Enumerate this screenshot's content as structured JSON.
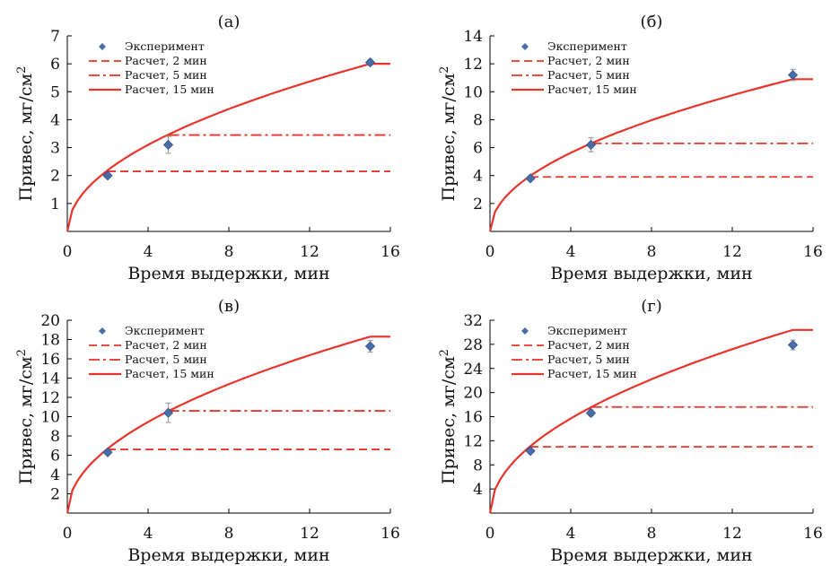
{
  "colors": {
    "calc": "#e8342a",
    "exp": "#4a6ea8",
    "err": "#a0a0a0",
    "axis": "#000000"
  },
  "chart_data": [
    {
      "type": "line",
      "panel_label": "(а)",
      "xlabel": "Время выдержки, мин",
      "ylabel": "Привес, мг/см",
      "ylabel_sup": "2",
      "xlim": [
        0,
        16
      ],
      "ylim": [
        0,
        7
      ],
      "xticks": [
        "0",
        "4",
        "8",
        "12",
        "16"
      ],
      "yticks": [
        "1",
        "2",
        "3",
        "4",
        "5",
        "6",
        "7"
      ],
      "experiment": {
        "name": "Эксперимент",
        "x": [
          2,
          5,
          15
        ],
        "y": [
          2.0,
          3.1,
          6.05
        ],
        "err": [
          0.05,
          0.3,
          0.1
        ]
      },
      "series": [
        {
          "name": "Расчет, 2 мин",
          "style": "dashed",
          "start": 2,
          "level": 2.15
        },
        {
          "name": "Расчет, 5 мин",
          "style": "dashdot",
          "start": 5,
          "level": 3.45
        },
        {
          "name": "Расчет, 15 мин",
          "style": "solid",
          "start": 15,
          "level": 6.0
        }
      ]
    },
    {
      "type": "line",
      "panel_label": "(б)",
      "xlabel": "Время выдержки, мин",
      "ylabel": "Привес, мг/см",
      "ylabel_sup": "2",
      "xlim": [
        0,
        16
      ],
      "ylim": [
        0,
        14
      ],
      "xticks": [
        "0",
        "4",
        "8",
        "12",
        "16"
      ],
      "yticks": [
        "2",
        "4",
        "6",
        "8",
        "10",
        "12",
        "14"
      ],
      "experiment": {
        "name": "Эксперимент",
        "x": [
          2,
          5,
          15
        ],
        "y": [
          3.8,
          6.2,
          11.2
        ],
        "err": [
          0.1,
          0.5,
          0.4
        ]
      },
      "series": [
        {
          "name": "Расчет, 2 мин",
          "style": "dashed",
          "start": 2,
          "level": 3.9
        },
        {
          "name": "Расчет, 5 мин",
          "style": "dashdot",
          "start": 5,
          "level": 6.3
        },
        {
          "name": "Расчет, 15 мин",
          "style": "solid",
          "start": 15,
          "level": 10.9
        }
      ]
    },
    {
      "type": "line",
      "panel_label": "(в)",
      "xlabel": "Время выдержки, мин",
      "ylabel": "Привес, мг/см",
      "ylabel_sup": "2",
      "xlim": [
        0,
        16
      ],
      "ylim": [
        0,
        20
      ],
      "xticks": [
        "0",
        "4",
        "8",
        "12",
        "16"
      ],
      "yticks": [
        "2",
        "4",
        "6",
        "8",
        "10",
        "12",
        "14",
        "16",
        "18",
        "20"
      ],
      "experiment": {
        "name": "Эксперимент",
        "x": [
          2,
          5,
          15
        ],
        "y": [
          6.3,
          10.4,
          17.3
        ],
        "err": [
          0.15,
          1.0,
          0.6
        ]
      },
      "series": [
        {
          "name": "Расчет, 2 мин",
          "style": "dashed",
          "start": 2,
          "level": 6.6
        },
        {
          "name": "Расчет, 5 мин",
          "style": "dashdot",
          "start": 5,
          "level": 10.6
        },
        {
          "name": "Расчет, 15 мин",
          "style": "solid",
          "start": 15,
          "level": 18.3
        }
      ]
    },
    {
      "type": "line",
      "panel_label": "(г)",
      "xlabel": "Время выдержки, мин",
      "ylabel": "Привес, мг/см",
      "ylabel_sup": "2",
      "xlim": [
        0,
        16
      ],
      "ylim": [
        0,
        32
      ],
      "xticks": [
        "0",
        "4",
        "8",
        "12",
        "16"
      ],
      "yticks": [
        "4",
        "8",
        "12",
        "16",
        "20",
        "24",
        "28",
        "32"
      ],
      "experiment": {
        "name": "Эксперимент",
        "x": [
          2,
          5,
          15
        ],
        "y": [
          10.3,
          16.6,
          27.9
        ],
        "err": [
          0.2,
          0.5,
          0.8
        ]
      },
      "series": [
        {
          "name": "Расчет, 2 мин",
          "style": "dashed",
          "start": 2,
          "level": 11.0
        },
        {
          "name": "Расчет, 5 мин",
          "style": "dashdot",
          "start": 5,
          "level": 17.6
        },
        {
          "name": "Расчет, 15 мин",
          "style": "solid",
          "start": 15,
          "level": 30.4
        }
      ]
    }
  ]
}
